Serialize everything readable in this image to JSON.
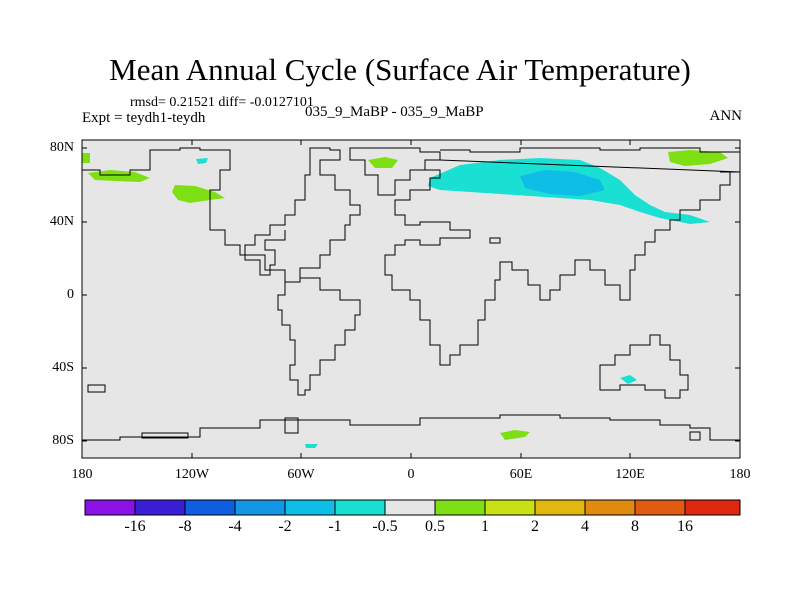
{
  "title": "Mean Annual Cycle (Surface Air Temperature)",
  "stats_text": "rmsd= 0.21521 diff= -0.0127101",
  "expt_text": "Expt = teydh1-teydh",
  "case_text": "035_9_MaBP - 035_9_MaBP",
  "season": "ANN",
  "lat_labels": [
    "80N",
    "40N",
    "0",
    "40S",
    "80S"
  ],
  "lon_labels": [
    "180",
    "120W",
    "60W",
    "0",
    "60E",
    "120E",
    "180"
  ],
  "colorbar": {
    "labels": [
      "-16",
      "-8",
      "-4",
      "-2",
      "-1",
      "-0.5",
      "0.5",
      "1",
      "2",
      "4",
      "8",
      "16"
    ],
    "colors": [
      "#8a12e6",
      "#3a1ed6",
      "#0f5ee0",
      "#1496e6",
      "#0fbee6",
      "#1ae0d4",
      "#e6e6e6",
      "#7ee014",
      "#c8e014",
      "#e0b80f",
      "#e08a0f",
      "#e05a0f",
      "#e0280f"
    ]
  },
  "colors": {
    "land_bg": "#e6e6e6",
    "positive_anom": "#7ee014",
    "negative_anom": "#1ae0d4",
    "strong_negative_anom": "#0fbee6"
  }
}
